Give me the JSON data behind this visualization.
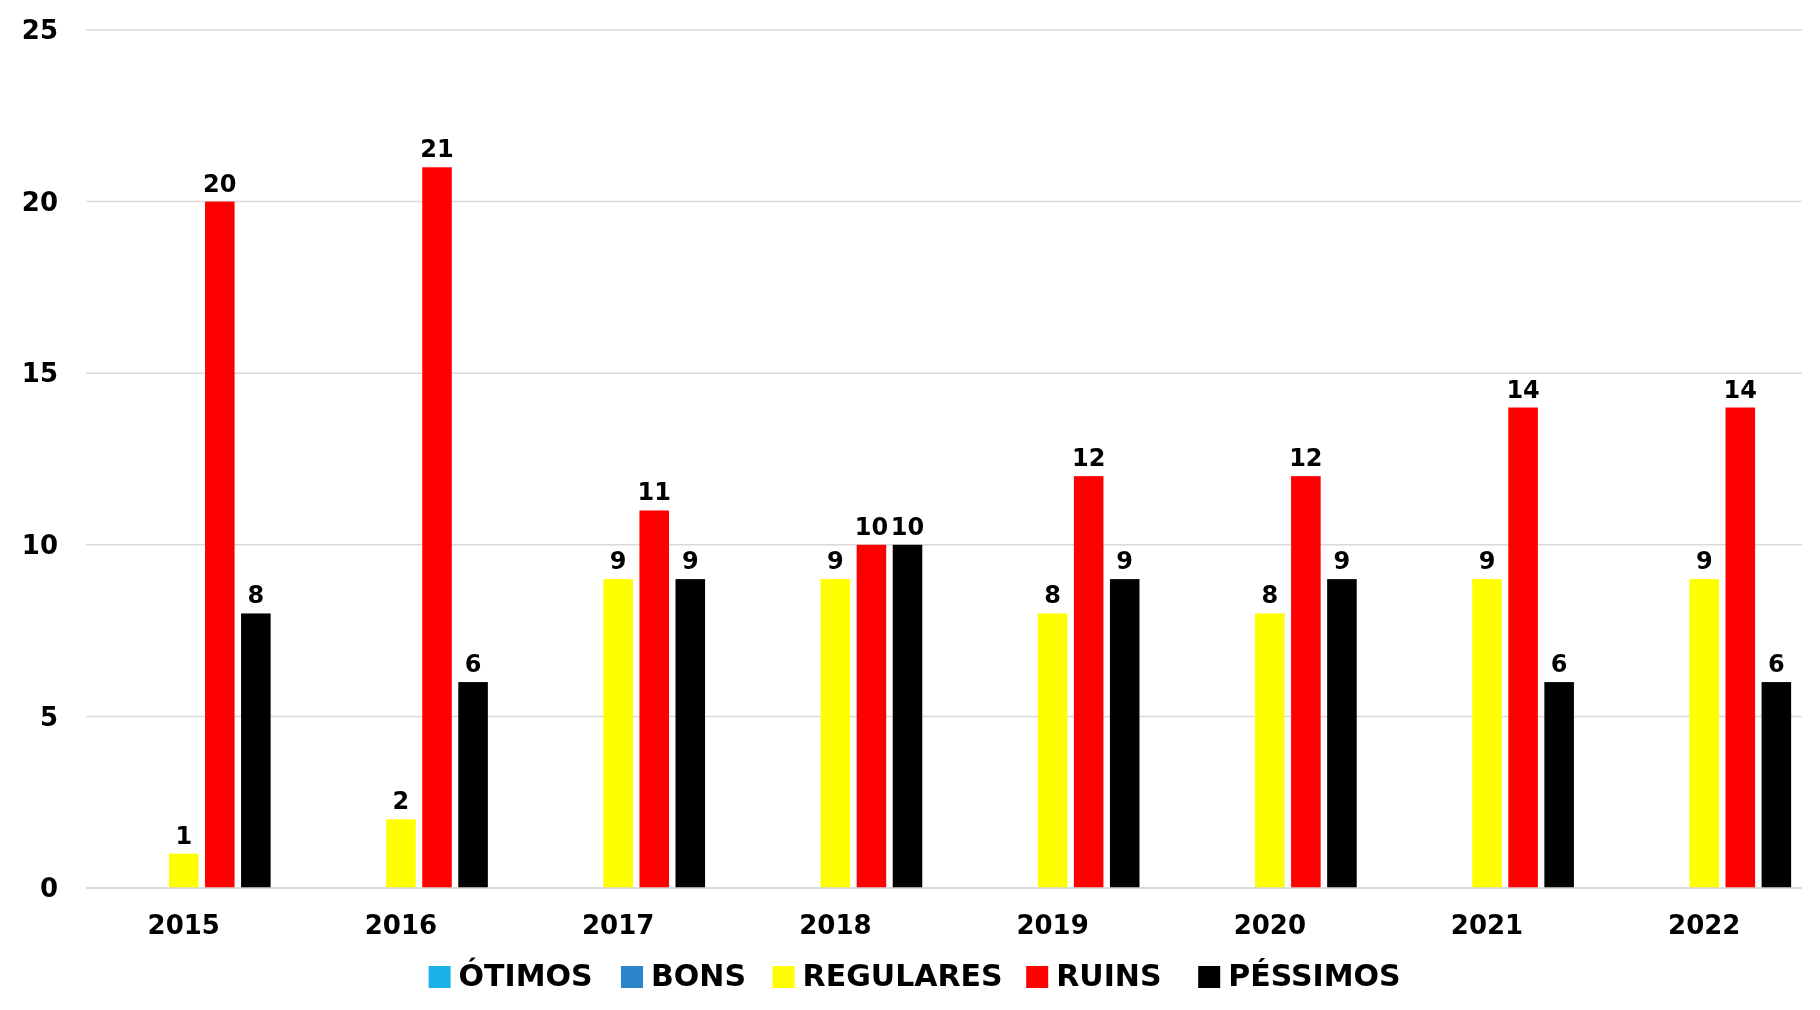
{
  "chart_data": {
    "type": "bar",
    "categories": [
      "2015",
      "2016",
      "2017",
      "2018",
      "2019",
      "2020",
      "2021",
      "2022"
    ],
    "series": [
      {
        "name": "ÓTIMOS",
        "color": "#1ab0e8",
        "values": [
          null,
          null,
          null,
          null,
          null,
          null,
          null,
          null
        ]
      },
      {
        "name": "BONS",
        "color": "#2a86c8",
        "values": [
          null,
          null,
          null,
          null,
          null,
          null,
          null,
          null
        ]
      },
      {
        "name": "REGULARES",
        "color": "#ffff00",
        "values": [
          1,
          2,
          9,
          9,
          8,
          8,
          9,
          9
        ]
      },
      {
        "name": "RUINS",
        "color": "#ff0000",
        "values": [
          20,
          21,
          11,
          10,
          12,
          12,
          14,
          14
        ]
      },
      {
        "name": "PÉSSIMOS",
        "color": "#000000",
        "values": [
          8,
          6,
          9,
          10,
          9,
          9,
          6,
          6
        ]
      }
    ],
    "ylim": [
      0,
      25
    ],
    "yticks": [
      0,
      5,
      10,
      15,
      20,
      25
    ],
    "grid": "y",
    "data_labels": true,
    "legend": "bottom"
  }
}
